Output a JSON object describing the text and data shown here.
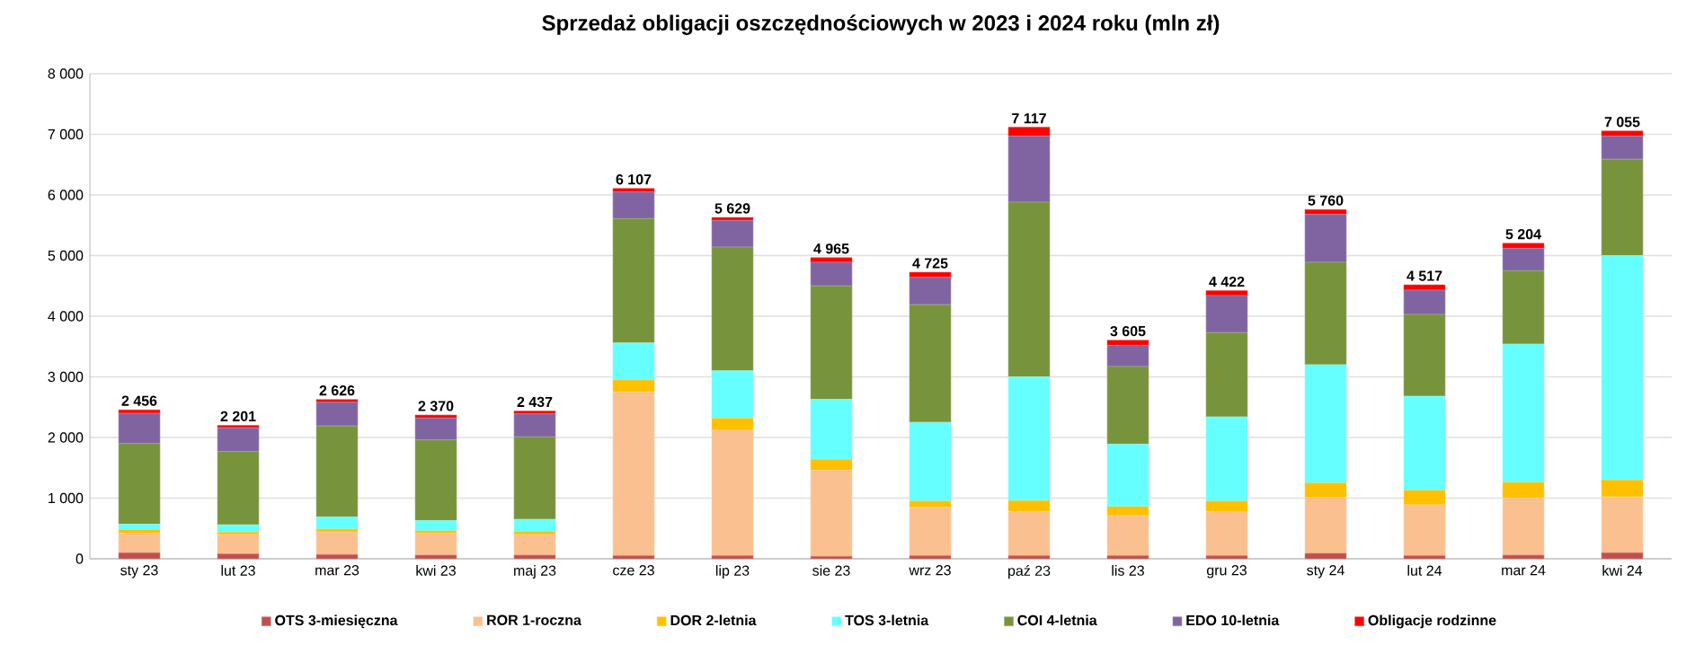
{
  "chart_data": {
    "type": "bar",
    "stacked": true,
    "title": "Sprzedaż obligacji oszczędnościowych w 2023 i 2024 roku (mln zł)",
    "categories": [
      "sty 23",
      "lut 23",
      "mar 23",
      "kwi 23",
      "maj 23",
      "cze 23",
      "lip 23",
      "sie 23",
      "wrz 23",
      "paź 23",
      "lis 23",
      "gru 23",
      "sty 24",
      "lut 24",
      "mar 24",
      "kwi 24"
    ],
    "series": [
      {
        "name": "OTS 3-miesięczna",
        "color": "#c0504d",
        "values": [
          100,
          80,
          70,
          60,
          60,
          50,
          50,
          40,
          50,
          50,
          50,
          50,
          90,
          50,
          60,
          100
        ]
      },
      {
        "name": "ROR 1-roczna",
        "color": "#fac090",
        "values": [
          320,
          320,
          370,
          360,
          340,
          2700,
          2070,
          1420,
          800,
          730,
          660,
          730,
          920,
          840,
          940,
          920
        ]
      },
      {
        "name": "DOR 2-letnia",
        "color": "#ffc000",
        "values": [
          60,
          40,
          50,
          40,
          50,
          200,
          200,
          180,
          100,
          180,
          150,
          170,
          240,
          240,
          260,
          280
        ]
      },
      {
        "name": "TOS 3-letnia",
        "color": "#66ffff",
        "values": [
          90,
          120,
          200,
          170,
          200,
          610,
          780,
          990,
          1300,
          2040,
          1030,
          1390,
          1950,
          1550,
          2280,
          3700
        ]
      },
      {
        "name": "COI 4-letnia",
        "color": "#77933c",
        "values": [
          1330,
          1210,
          1500,
          1330,
          1360,
          2050,
          2040,
          1870,
          1940,
          2880,
          1280,
          1390,
          1690,
          1350,
          1210,
          1590
        ]
      },
      {
        "name": "EDO 10-letnia",
        "color": "#8064a2",
        "values": [
          500,
          390,
          390,
          360,
          380,
          440,
          440,
          390,
          450,
          1090,
          350,
          610,
          790,
          400,
          370,
          380
        ]
      },
      {
        "name": "Obligacje rodzinne",
        "color": "#ff0000",
        "values": [
          56,
          41,
          46,
          50,
          47,
          57,
          49,
          75,
          85,
          147,
          85,
          82,
          80,
          87,
          84,
          85
        ]
      }
    ],
    "totals": [
      "2 456",
      "2 201",
      "2 626",
      "2 370",
      "2 437",
      "6 107",
      "5 629",
      "4 965",
      "4 725",
      "7 117",
      "3 605",
      "4 422",
      "5 760",
      "4 517",
      "5 204",
      "7 055"
    ],
    "ylim": [
      0,
      8000
    ],
    "yticks": [
      {
        "value": 0,
        "label": "0"
      },
      {
        "value": 1000,
        "label": "1 000"
      },
      {
        "value": 2000,
        "label": "2 000"
      },
      {
        "value": 3000,
        "label": "3 000"
      },
      {
        "value": 4000,
        "label": "4 000"
      },
      {
        "value": 5000,
        "label": "5 000"
      },
      {
        "value": 6000,
        "label": "6 000"
      },
      {
        "value": 7000,
        "label": "7 000"
      },
      {
        "value": 8000,
        "label": "8 000"
      }
    ],
    "grid": "y",
    "legend": "bottom"
  }
}
